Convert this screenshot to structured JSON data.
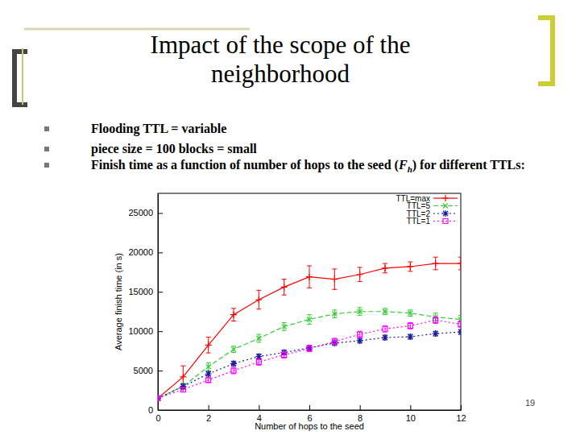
{
  "slide": {
    "title": "Impact of the scope of the neighborhood",
    "bullets": [
      {
        "parts": [
          "Flooding TTL = variable"
        ]
      },
      {
        "parts": [
          "piece size = 100 blocks = small"
        ]
      },
      {
        "parts": [
          "Finish time as a function of number of hops  to the seed (",
          "F",
          "h",
          ") for different TTLs:"
        ]
      }
    ],
    "page_number": "19"
  },
  "chart_data": {
    "type": "line",
    "x_label": "Number of hops to the seed",
    "y_label": "Average finish time (in s)",
    "x": [
      0,
      1,
      2,
      3,
      4,
      5,
      6,
      7,
      8,
      9,
      10,
      11,
      12
    ],
    "xlim": [
      0,
      12
    ],
    "xticks": [
      0,
      2,
      4,
      6,
      8,
      10,
      12
    ],
    "ylim": [
      0,
      27500
    ],
    "yticks": [
      0,
      5000,
      10000,
      15000,
      20000,
      25000
    ],
    "grid": false,
    "legend": "upper right",
    "series": [
      {
        "name": "TTL=max",
        "color": "#ff0000",
        "marker": "plus",
        "line_style": "solid",
        "values": [
          1500,
          4200,
          8250,
          12100,
          14000,
          15600,
          16900,
          16600,
          17200,
          18000,
          18200,
          18600,
          18600
        ],
        "errors": [
          200,
          1400,
          1000,
          800,
          1200,
          1000,
          1400,
          1300,
          900,
          600,
          600,
          800,
          800
        ]
      },
      {
        "name": "TTL=5",
        "color": "#33cc33",
        "marker": "cross",
        "line_style": "dashed",
        "values": [
          1500,
          3000,
          5500,
          7700,
          9100,
          10600,
          11500,
          12200,
          12500,
          12500,
          12300,
          11800,
          11500
        ],
        "errors": [
          200,
          400,
          500,
          400,
          500,
          500,
          600,
          500,
          500,
          400,
          400,
          500,
          500
        ]
      },
      {
        "name": "TTL=2",
        "color": "#1a1aa0",
        "marker": "star",
        "line_style": "dotted",
        "values": [
          1500,
          3000,
          4600,
          5900,
          6800,
          7300,
          7900,
          8500,
          8800,
          9200,
          9300,
          9700,
          9900
        ],
        "errors": [
          200,
          300,
          300,
          300,
          300,
          300,
          300,
          300,
          300,
          300,
          300,
          300,
          300
        ]
      },
      {
        "name": "TTL=1",
        "color": "#ff00ff",
        "marker": "square",
        "line_style": "dotted",
        "values": [
          1500,
          2600,
          3800,
          5000,
          6100,
          7000,
          7800,
          8700,
          9600,
          10300,
          10700,
          11400,
          10900
        ],
        "errors": [
          200,
          300,
          300,
          400,
          400,
          400,
          400,
          400,
          400,
          400,
          400,
          400,
          400
        ]
      }
    ]
  }
}
